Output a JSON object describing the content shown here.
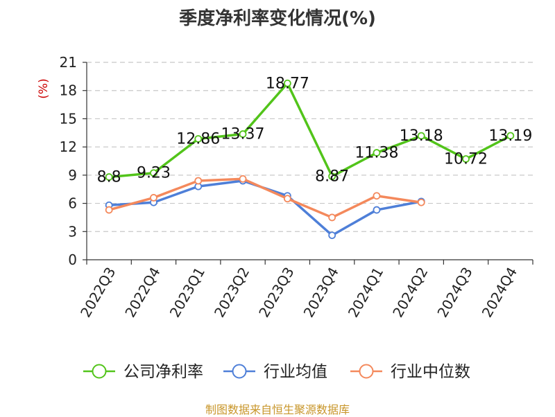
{
  "chart_data": {
    "type": "line",
    "title": "季度净利率变化情况(%)",
    "ylabel": "(%)",
    "categories": [
      "2022Q3",
      "2022Q4",
      "2023Q1",
      "2023Q2",
      "2023Q3",
      "2023Q4",
      "2024Q1",
      "2024Q2",
      "2024Q3",
      "2024Q4"
    ],
    "ylim": [
      0,
      21
    ],
    "yticks": [
      "0",
      "3",
      "6",
      "9",
      "12",
      "15",
      "18",
      "21"
    ],
    "grid": true,
    "legend_position": "bottom",
    "series": [
      {
        "name": "公司净利率",
        "color": "#52c41a",
        "values": [
          8.8,
          9.23,
          12.86,
          13.37,
          18.77,
          8.87,
          11.38,
          13.18,
          10.72,
          13.19
        ],
        "labels": [
          "8.8",
          "9.23",
          "12.86",
          "13.37",
          "18.77",
          "8.87",
          "11.38",
          "13.18",
          "10.72",
          "13.19"
        ]
      },
      {
        "name": "行业均值",
        "color": "#4e7fd8",
        "values": [
          5.8,
          6.1,
          7.8,
          8.4,
          6.8,
          2.6,
          5.3,
          6.2,
          null,
          null
        ]
      },
      {
        "name": "行业中位数",
        "color": "#f4895c",
        "values": [
          5.3,
          6.6,
          8.4,
          8.6,
          6.5,
          4.5,
          6.8,
          6.1,
          null,
          null
        ]
      }
    ]
  },
  "footer": {
    "source": "制图数据来自恒生聚源数据库",
    "color": "#c8962a"
  },
  "colors": {
    "ylabel": "#cc0000",
    "grid": "#c8c8c8",
    "axis": "#333333"
  }
}
